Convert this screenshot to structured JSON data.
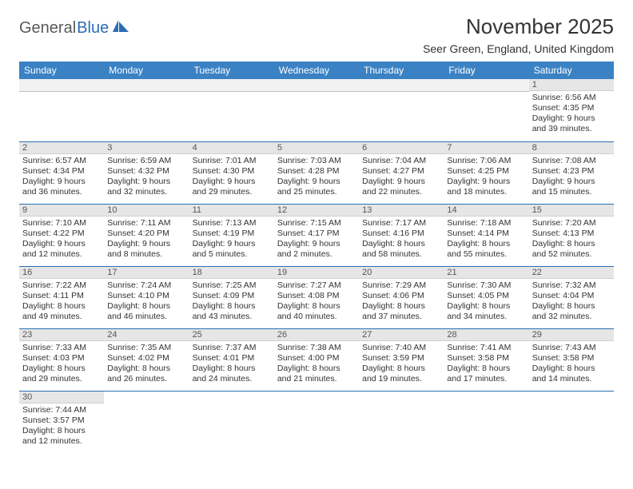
{
  "brand": {
    "part1": "General",
    "part2": "Blue"
  },
  "title": "November 2025",
  "location": "Seer Green, England, United Kingdom",
  "colors": {
    "header_bg": "#3b82c4",
    "header_text": "#ffffff",
    "row_divider": "#2a6db5",
    "daynum_bg": "#e6e6e6",
    "blank_bg": "#f2f2f2",
    "brand_gray": "#58595b",
    "brand_blue": "#2a6db5"
  },
  "day_headers": [
    "Sunday",
    "Monday",
    "Tuesday",
    "Wednesday",
    "Thursday",
    "Friday",
    "Saturday"
  ],
  "weeks": [
    [
      null,
      null,
      null,
      null,
      null,
      null,
      {
        "n": "1",
        "sr": "Sunrise: 6:56 AM",
        "ss": "Sunset: 4:35 PM",
        "dl": "Daylight: 9 hours and 39 minutes."
      }
    ],
    [
      {
        "n": "2",
        "sr": "Sunrise: 6:57 AM",
        "ss": "Sunset: 4:34 PM",
        "dl": "Daylight: 9 hours and 36 minutes."
      },
      {
        "n": "3",
        "sr": "Sunrise: 6:59 AM",
        "ss": "Sunset: 4:32 PM",
        "dl": "Daylight: 9 hours and 32 minutes."
      },
      {
        "n": "4",
        "sr": "Sunrise: 7:01 AM",
        "ss": "Sunset: 4:30 PM",
        "dl": "Daylight: 9 hours and 29 minutes."
      },
      {
        "n": "5",
        "sr": "Sunrise: 7:03 AM",
        "ss": "Sunset: 4:28 PM",
        "dl": "Daylight: 9 hours and 25 minutes."
      },
      {
        "n": "6",
        "sr": "Sunrise: 7:04 AM",
        "ss": "Sunset: 4:27 PM",
        "dl": "Daylight: 9 hours and 22 minutes."
      },
      {
        "n": "7",
        "sr": "Sunrise: 7:06 AM",
        "ss": "Sunset: 4:25 PM",
        "dl": "Daylight: 9 hours and 18 minutes."
      },
      {
        "n": "8",
        "sr": "Sunrise: 7:08 AM",
        "ss": "Sunset: 4:23 PM",
        "dl": "Daylight: 9 hours and 15 minutes."
      }
    ],
    [
      {
        "n": "9",
        "sr": "Sunrise: 7:10 AM",
        "ss": "Sunset: 4:22 PM",
        "dl": "Daylight: 9 hours and 12 minutes."
      },
      {
        "n": "10",
        "sr": "Sunrise: 7:11 AM",
        "ss": "Sunset: 4:20 PM",
        "dl": "Daylight: 9 hours and 8 minutes."
      },
      {
        "n": "11",
        "sr": "Sunrise: 7:13 AM",
        "ss": "Sunset: 4:19 PM",
        "dl": "Daylight: 9 hours and 5 minutes."
      },
      {
        "n": "12",
        "sr": "Sunrise: 7:15 AM",
        "ss": "Sunset: 4:17 PM",
        "dl": "Daylight: 9 hours and 2 minutes."
      },
      {
        "n": "13",
        "sr": "Sunrise: 7:17 AM",
        "ss": "Sunset: 4:16 PM",
        "dl": "Daylight: 8 hours and 58 minutes."
      },
      {
        "n": "14",
        "sr": "Sunrise: 7:18 AM",
        "ss": "Sunset: 4:14 PM",
        "dl": "Daylight: 8 hours and 55 minutes."
      },
      {
        "n": "15",
        "sr": "Sunrise: 7:20 AM",
        "ss": "Sunset: 4:13 PM",
        "dl": "Daylight: 8 hours and 52 minutes."
      }
    ],
    [
      {
        "n": "16",
        "sr": "Sunrise: 7:22 AM",
        "ss": "Sunset: 4:11 PM",
        "dl": "Daylight: 8 hours and 49 minutes."
      },
      {
        "n": "17",
        "sr": "Sunrise: 7:24 AM",
        "ss": "Sunset: 4:10 PM",
        "dl": "Daylight: 8 hours and 46 minutes."
      },
      {
        "n": "18",
        "sr": "Sunrise: 7:25 AM",
        "ss": "Sunset: 4:09 PM",
        "dl": "Daylight: 8 hours and 43 minutes."
      },
      {
        "n": "19",
        "sr": "Sunrise: 7:27 AM",
        "ss": "Sunset: 4:08 PM",
        "dl": "Daylight: 8 hours and 40 minutes."
      },
      {
        "n": "20",
        "sr": "Sunrise: 7:29 AM",
        "ss": "Sunset: 4:06 PM",
        "dl": "Daylight: 8 hours and 37 minutes."
      },
      {
        "n": "21",
        "sr": "Sunrise: 7:30 AM",
        "ss": "Sunset: 4:05 PM",
        "dl": "Daylight: 8 hours and 34 minutes."
      },
      {
        "n": "22",
        "sr": "Sunrise: 7:32 AM",
        "ss": "Sunset: 4:04 PM",
        "dl": "Daylight: 8 hours and 32 minutes."
      }
    ],
    [
      {
        "n": "23",
        "sr": "Sunrise: 7:33 AM",
        "ss": "Sunset: 4:03 PM",
        "dl": "Daylight: 8 hours and 29 minutes."
      },
      {
        "n": "24",
        "sr": "Sunrise: 7:35 AM",
        "ss": "Sunset: 4:02 PM",
        "dl": "Daylight: 8 hours and 26 minutes."
      },
      {
        "n": "25",
        "sr": "Sunrise: 7:37 AM",
        "ss": "Sunset: 4:01 PM",
        "dl": "Daylight: 8 hours and 24 minutes."
      },
      {
        "n": "26",
        "sr": "Sunrise: 7:38 AM",
        "ss": "Sunset: 4:00 PM",
        "dl": "Daylight: 8 hours and 21 minutes."
      },
      {
        "n": "27",
        "sr": "Sunrise: 7:40 AM",
        "ss": "Sunset: 3:59 PM",
        "dl": "Daylight: 8 hours and 19 minutes."
      },
      {
        "n": "28",
        "sr": "Sunrise: 7:41 AM",
        "ss": "Sunset: 3:58 PM",
        "dl": "Daylight: 8 hours and 17 minutes."
      },
      {
        "n": "29",
        "sr": "Sunrise: 7:43 AM",
        "ss": "Sunset: 3:58 PM",
        "dl": "Daylight: 8 hours and 14 minutes."
      }
    ],
    [
      {
        "n": "30",
        "sr": "Sunrise: 7:44 AM",
        "ss": "Sunset: 3:57 PM",
        "dl": "Daylight: 8 hours and 12 minutes."
      },
      null,
      null,
      null,
      null,
      null,
      null
    ]
  ]
}
